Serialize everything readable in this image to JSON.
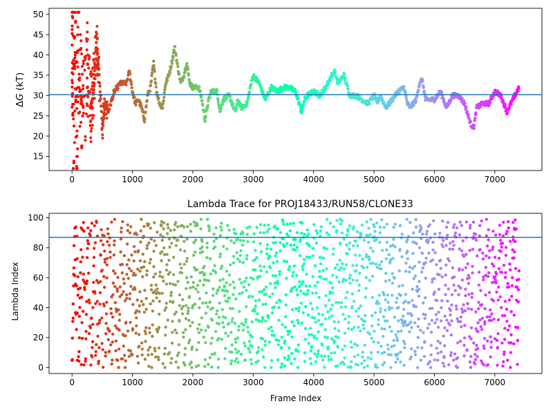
{
  "chart_data": [
    {
      "type": "scatter",
      "title": "",
      "xlabel": "",
      "ylabel": "ΔG (kT)",
      "ylabel_italic": "G",
      "xlim": [
        -380,
        7780
      ],
      "ylim": [
        11.5,
        51.5
      ],
      "xticks": [
        0,
        1000,
        2000,
        3000,
        4000,
        5000,
        6000,
        7000
      ],
      "yticks": [
        15,
        20,
        25,
        30,
        35,
        40,
        45,
        50
      ],
      "hline": 30.2,
      "hline_color": "#1f77b4",
      "colormap": "rainbow (red at frame 0 through green and blue to violet at frame 7400)",
      "grid": false,
      "legend": "none",
      "series": [
        {
          "points": [
            [
              0,
              12
            ],
            [
              0,
              20
            ],
            [
              0,
              25
            ],
            [
              0,
              36
            ],
            [
              0,
              40
            ],
            [
              10,
              44
            ],
            [
              10,
              30
            ],
            [
              20,
              50
            ],
            [
              20,
              23
            ],
            [
              30,
              28
            ],
            [
              40,
              33
            ],
            [
              50,
              42
            ],
            [
              60,
              38
            ],
            [
              80,
              17
            ],
            [
              100,
              45
            ],
            [
              120,
              35
            ],
            [
              150,
              31
            ],
            [
              180,
              28
            ],
            [
              200,
              26
            ],
            [
              250,
              38
            ],
            [
              300,
              27
            ],
            [
              350,
              30
            ],
            [
              400,
              43
            ],
            [
              450,
              35
            ],
            [
              500,
              22
            ],
            [
              550,
              28
            ],
            [
              600,
              26
            ],
            [
              700,
              31
            ],
            [
              800,
              33
            ],
            [
              900,
              33
            ],
            [
              950,
              36
            ],
            [
              1000,
              31
            ],
            [
              1050,
              28
            ],
            [
              1100,
              29
            ],
            [
              1150,
              27
            ],
            [
              1200,
              24
            ],
            [
              1250,
              30
            ],
            [
              1300,
              32
            ],
            [
              1350,
              38
            ],
            [
              1400,
              31
            ],
            [
              1450,
              28
            ],
            [
              1500,
              27
            ],
            [
              1550,
              33
            ],
            [
              1600,
              35
            ],
            [
              1650,
              38
            ],
            [
              1700,
              42
            ],
            [
              1750,
              37
            ],
            [
              1800,
              33
            ],
            [
              1850,
              35
            ],
            [
              1900,
              38
            ],
            [
              1950,
              33
            ],
            [
              2000,
              32
            ],
            [
              2100,
              32
            ],
            [
              2150,
              29
            ],
            [
              2200,
              24
            ],
            [
              2250,
              28
            ],
            [
              2300,
              31
            ],
            [
              2400,
              31
            ],
            [
              2450,
              26
            ],
            [
              2500,
              29
            ],
            [
              2600,
              30
            ],
            [
              2700,
              26
            ],
            [
              2750,
              29
            ],
            [
              2800,
              27
            ],
            [
              2900,
              28
            ],
            [
              2950,
              32
            ],
            [
              3000,
              35
            ],
            [
              3100,
              33
            ],
            [
              3200,
              29
            ],
            [
              3300,
              32
            ],
            [
              3400,
              31
            ],
            [
              3500,
              32
            ],
            [
              3600,
              32
            ],
            [
              3700,
              31
            ],
            [
              3800,
              26
            ],
            [
              3850,
              29
            ],
            [
              3900,
              30
            ],
            [
              4000,
              31
            ],
            [
              4100,
              30
            ],
            [
              4200,
              32
            ],
            [
              4300,
              35
            ],
            [
              4350,
              36
            ],
            [
              4400,
              33
            ],
            [
              4500,
              35
            ],
            [
              4600,
              30
            ],
            [
              4700,
              30
            ],
            [
              4800,
              29
            ],
            [
              4900,
              28
            ],
            [
              5000,
              30
            ],
            [
              5050,
              28
            ],
            [
              5100,
              30
            ],
            [
              5200,
              27
            ],
            [
              5300,
              29
            ],
            [
              5400,
              31
            ],
            [
              5500,
              32
            ],
            [
              5550,
              28
            ],
            [
              5600,
              27
            ],
            [
              5700,
              29
            ],
            [
              5750,
              33
            ],
            [
              5800,
              34
            ],
            [
              5850,
              29
            ],
            [
              6000,
              29
            ],
            [
              6100,
              31
            ],
            [
              6200,
              27
            ],
            [
              6300,
              30
            ],
            [
              6400,
              30
            ],
            [
              6500,
              28
            ],
            [
              6600,
              23
            ],
            [
              6650,
              22
            ],
            [
              6700,
              27
            ],
            [
              6800,
              28
            ],
            [
              6900,
              28
            ],
            [
              7000,
              31
            ],
            [
              7100,
              30
            ],
            [
              7150,
              28
            ],
            [
              7200,
              26
            ],
            [
              7300,
              29
            ],
            [
              7400,
              32
            ]
          ]
        }
      ]
    },
    {
      "type": "scatter",
      "title": "Lambda Trace for PROJ18433/RUN58/CLONE33",
      "xlabel": "Frame Index",
      "ylabel": "Lambda Index",
      "xlim": [
        -380,
        7780
      ],
      "ylim": [
        -4,
        103
      ],
      "xticks": [
        0,
        1000,
        2000,
        3000,
        4000,
        5000,
        6000,
        7000
      ],
      "yticks": [
        0,
        20,
        40,
        60,
        80,
        100
      ],
      "hline": 87,
      "hline_color": "#1f77b4",
      "colormap": "rainbow (red at frame 0 through green and blue to violet at frame 7400)",
      "grid": false,
      "legend": "none",
      "series": [
        {
          "frame_range": [
            0,
            7400
          ],
          "lambda_range": [
            0,
            99
          ],
          "description_values": "lambda index wanders across 0–99 as vertical streaks through the frames"
        }
      ]
    }
  ]
}
